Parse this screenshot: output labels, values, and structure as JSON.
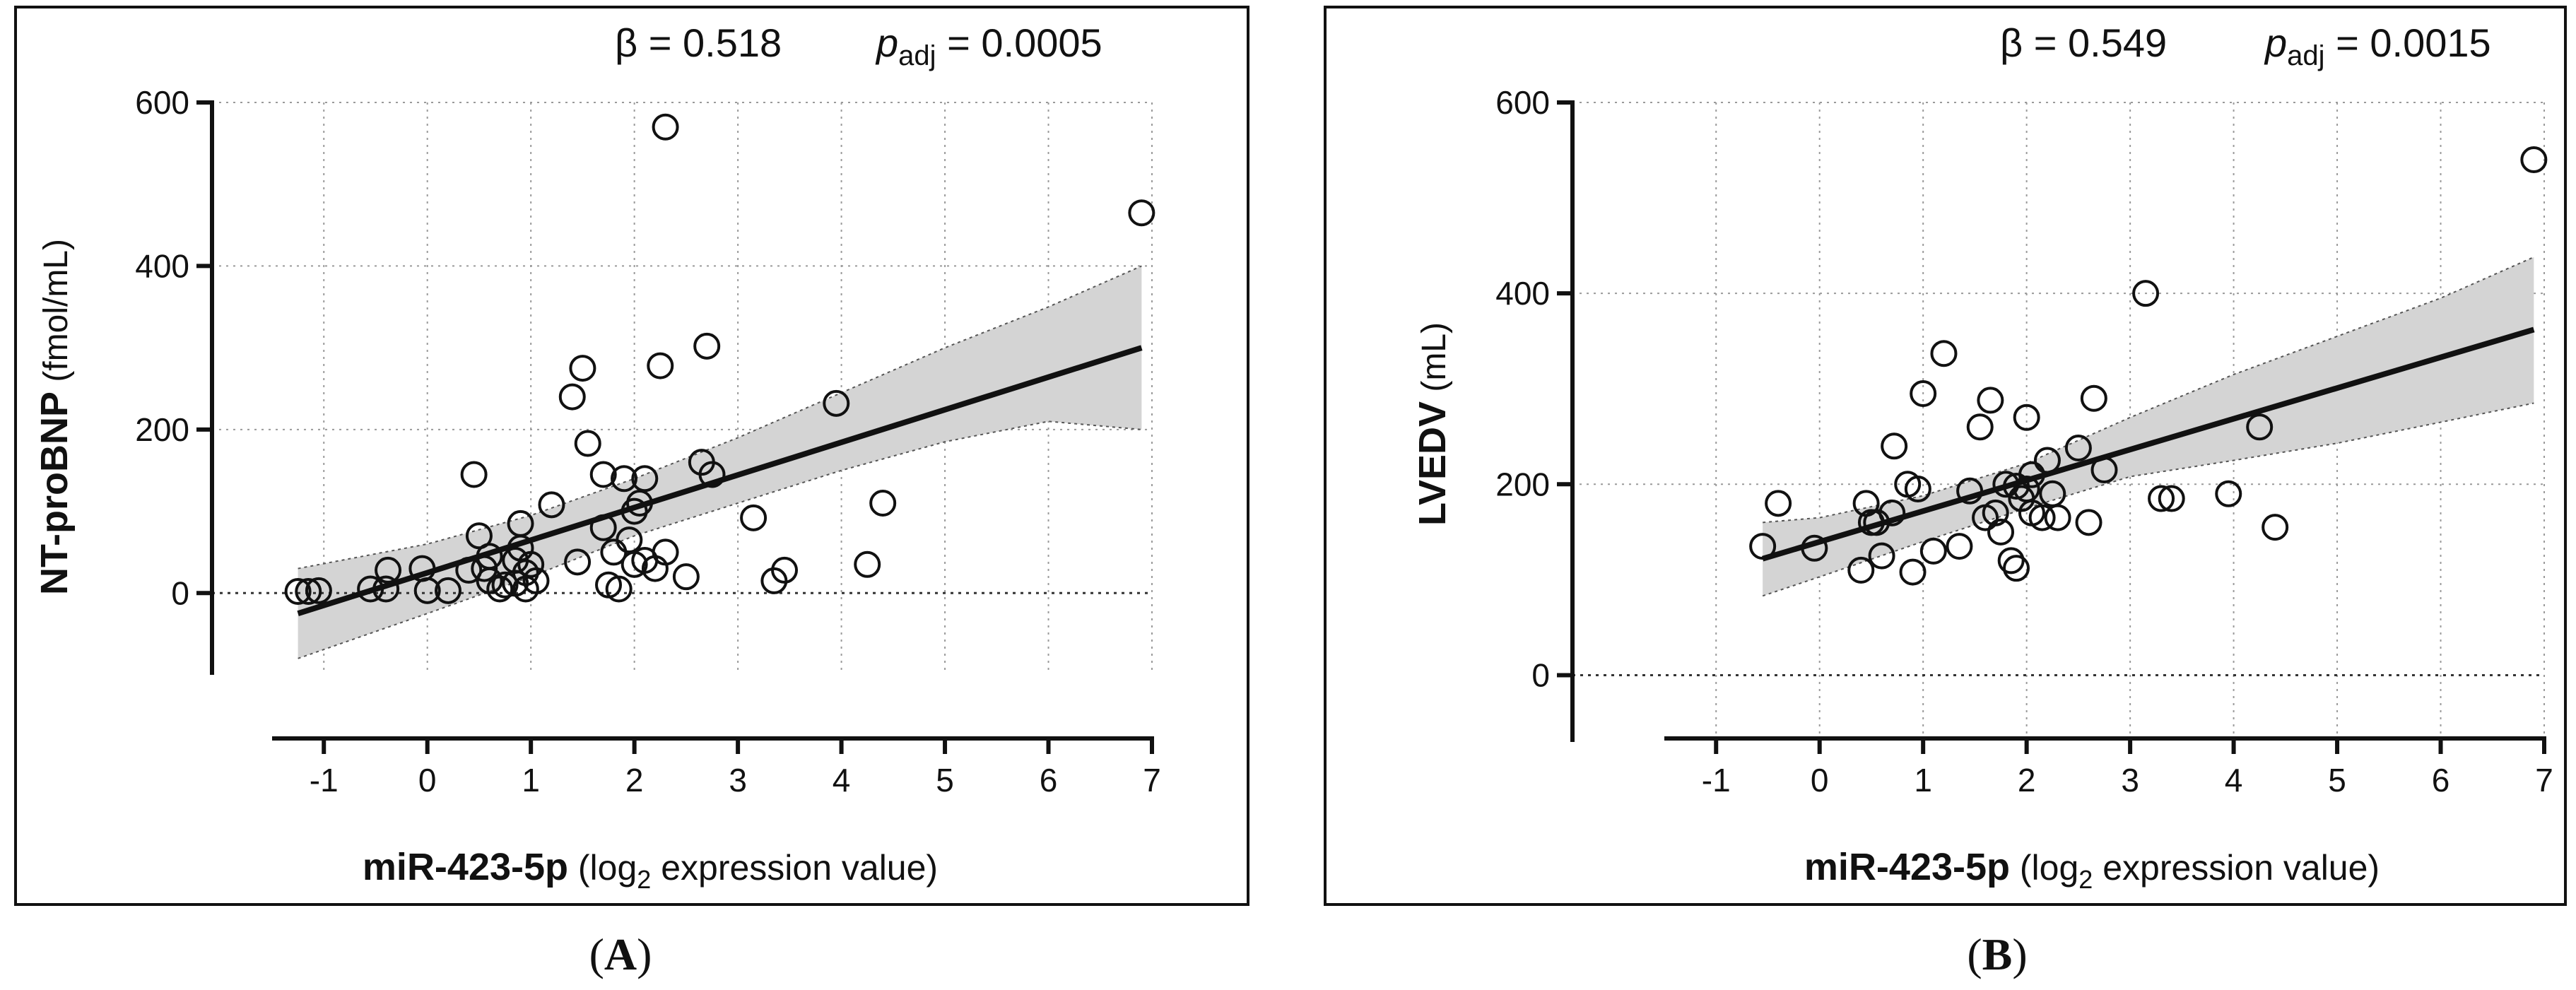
{
  "chart_data": [
    {
      "type": "scatter",
      "panel_label": "A",
      "beta_text": "β = 0.518",
      "p_label": "p",
      "p_sub": "adj",
      "p_value_text": " = 0.0005",
      "xlabel_bold": "miR-423-5p",
      "xlabel_pre": " (log",
      "xlabel_sub": "2",
      "xlabel_post": " expression value)",
      "ylabel_bold": "NT-proBNP",
      "ylabel_rest": " (fmol/mL)",
      "xlim": [
        -1.5,
        7
      ],
      "ylim": [
        -100,
        600
      ],
      "xticks": [
        -1,
        0,
        1,
        2,
        3,
        4,
        5,
        6,
        7
      ],
      "yticks": [
        0,
        200,
        400,
        600
      ],
      "grid": true,
      "fit": {
        "x0": -1.25,
        "y0": -25,
        "x1": 6.9,
        "y1": 300
      },
      "ci_upper": [
        [
          -1.25,
          30
        ],
        [
          0,
          60
        ],
        [
          1,
          95
        ],
        [
          2,
          140
        ],
        [
          3,
          190
        ],
        [
          4,
          245
        ],
        [
          5,
          300
        ],
        [
          6,
          350
        ],
        [
          6.9,
          400
        ]
      ],
      "ci_lower": [
        [
          -1.25,
          -80
        ],
        [
          0,
          -25
        ],
        [
          1,
          20
        ],
        [
          2,
          70
        ],
        [
          3,
          110
        ],
        [
          4,
          150
        ],
        [
          5,
          185
        ],
        [
          6,
          210
        ],
        [
          6.9,
          200
        ]
      ],
      "points": [
        [
          -1.25,
          2
        ],
        [
          -1.15,
          2
        ],
        [
          -1.05,
          3
        ],
        [
          -0.55,
          5
        ],
        [
          -0.4,
          5
        ],
        [
          -0.38,
          28
        ],
        [
          -0.05,
          30
        ],
        [
          0.0,
          3
        ],
        [
          0.2,
          3
        ],
        [
          0.4,
          28
        ],
        [
          0.45,
          145
        ],
        [
          0.5,
          70
        ],
        [
          0.55,
          30
        ],
        [
          0.6,
          45
        ],
        [
          0.6,
          15
        ],
        [
          0.7,
          5
        ],
        [
          0.75,
          10
        ],
        [
          0.85,
          12
        ],
        [
          0.85,
          40
        ],
        [
          0.9,
          85
        ],
        [
          0.9,
          55
        ],
        [
          0.95,
          25
        ],
        [
          0.95,
          5
        ],
        [
          1.0,
          35
        ],
        [
          1.05,
          15
        ],
        [
          1.2,
          108
        ],
        [
          1.4,
          240
        ],
        [
          1.45,
          38
        ],
        [
          1.5,
          275
        ],
        [
          1.55,
          183
        ],
        [
          1.7,
          145
        ],
        [
          1.7,
          80
        ],
        [
          1.75,
          10
        ],
        [
          1.8,
          50
        ],
        [
          1.85,
          5
        ],
        [
          1.9,
          140
        ],
        [
          1.95,
          65
        ],
        [
          2.0,
          35
        ],
        [
          2.0,
          100
        ],
        [
          2.05,
          110
        ],
        [
          2.1,
          40
        ],
        [
          2.1,
          140
        ],
        [
          2.2,
          30
        ],
        [
          2.3,
          50
        ],
        [
          2.25,
          278
        ],
        [
          2.3,
          570
        ],
        [
          2.5,
          20
        ],
        [
          2.65,
          160
        ],
        [
          2.7,
          302
        ],
        [
          2.75,
          145
        ],
        [
          3.15,
          92
        ],
        [
          3.35,
          15
        ],
        [
          3.45,
          28
        ],
        [
          3.95,
          232
        ],
        [
          4.25,
          35
        ],
        [
          4.4,
          110
        ],
        [
          6.9,
          465
        ]
      ]
    },
    {
      "type": "scatter",
      "panel_label": "B",
      "beta_text": "β = 0.549",
      "p_label": "p",
      "p_sub": "adj",
      "p_value_text": " = 0.0015",
      "xlabel_bold": "miR-423-5p",
      "xlabel_pre": " (log",
      "xlabel_sub": "2",
      "xlabel_post": " expression value)",
      "ylabel_bold": "LVEDV",
      "ylabel_rest": " (mL)",
      "xlim": [
        -1.5,
        7
      ],
      "ylim": [
        -70,
        600
      ],
      "xticks": [
        -1,
        0,
        1,
        2,
        3,
        4,
        5,
        6,
        7
      ],
      "yticks": [
        0,
        200,
        400,
        600
      ],
      "grid": true,
      "fit": {
        "x0": -0.55,
        "y0": 122,
        "x1": 6.9,
        "y1": 362
      },
      "ci_upper": [
        [
          -0.55,
          160
        ],
        [
          0,
          165
        ],
        [
          1,
          188
        ],
        [
          2,
          222
        ],
        [
          3,
          270
        ],
        [
          4,
          315
        ],
        [
          5,
          355
        ],
        [
          6,
          395
        ],
        [
          6.9,
          438
        ]
      ],
      "ci_lower": [
        [
          -0.55,
          83
        ],
        [
          0,
          103
        ],
        [
          1,
          140
        ],
        [
          2,
          175
        ],
        [
          3,
          208
        ],
        [
          4,
          225
        ],
        [
          5,
          243
        ],
        [
          6,
          265
        ],
        [
          6.9,
          285
        ]
      ],
      "points": [
        [
          -0.55,
          135
        ],
        [
          -0.4,
          180
        ],
        [
          -0.05,
          133
        ],
        [
          0.4,
          110
        ],
        [
          0.45,
          180
        ],
        [
          0.5,
          160
        ],
        [
          0.55,
          160
        ],
        [
          0.6,
          125
        ],
        [
          0.7,
          170
        ],
        [
          0.72,
          240
        ],
        [
          0.85,
          200
        ],
        [
          0.9,
          108
        ],
        [
          0.95,
          195
        ],
        [
          1.0,
          295
        ],
        [
          1.1,
          130
        ],
        [
          1.2,
          337
        ],
        [
          1.35,
          135
        ],
        [
          1.45,
          193
        ],
        [
          1.55,
          260
        ],
        [
          1.6,
          165
        ],
        [
          1.65,
          288
        ],
        [
          1.7,
          170
        ],
        [
          1.75,
          150
        ],
        [
          1.8,
          200
        ],
        [
          1.85,
          120
        ],
        [
          1.9,
          198
        ],
        [
          1.9,
          112
        ],
        [
          1.95,
          185
        ],
        [
          2.0,
          270
        ],
        [
          2.0,
          195
        ],
        [
          2.05,
          210
        ],
        [
          2.05,
          170
        ],
        [
          2.15,
          165
        ],
        [
          2.2,
          225
        ],
        [
          2.25,
          190
        ],
        [
          2.3,
          165
        ],
        [
          2.5,
          238
        ],
        [
          2.6,
          160
        ],
        [
          2.65,
          290
        ],
        [
          2.75,
          215
        ],
        [
          3.15,
          400
        ],
        [
          3.3,
          185
        ],
        [
          3.4,
          185
        ],
        [
          3.95,
          190
        ],
        [
          4.25,
          260
        ],
        [
          4.4,
          155
        ],
        [
          6.9,
          540
        ]
      ]
    }
  ]
}
